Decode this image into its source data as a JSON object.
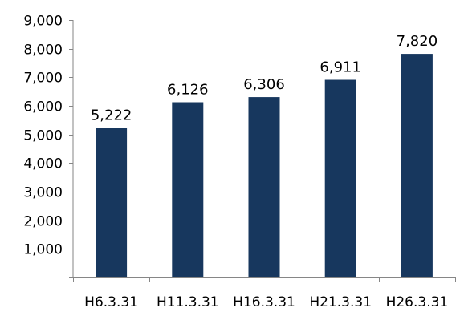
{
  "page_title": "",
  "chart_data": {
    "type": "bar",
    "title": "",
    "xlabel": "",
    "ylabel": "",
    "categories": [
      "H6.3.31",
      "H11.3.31",
      "H16.3.31",
      "H21.3.31",
      "H26.3.31"
    ],
    "values": [
      5222,
      6126,
      6306,
      6911,
      7820
    ],
    "value_labels": [
      "5,222",
      "6,126",
      "6,306",
      "6,911",
      "7,820"
    ],
    "ylim": [
      0,
      9000
    ],
    "yticks": [
      0,
      1000,
      2000,
      3000,
      4000,
      5000,
      6000,
      7000,
      8000,
      9000
    ],
    "ytick_labels": [
      "",
      "1,000",
      "2,000",
      "3,000",
      "4,000",
      "5,000",
      "6,000",
      "7,000",
      "8,000",
      "9,000"
    ],
    "grid": false,
    "legend": "none",
    "bar_color": "#17375e",
    "axis_color": "#868686"
  }
}
